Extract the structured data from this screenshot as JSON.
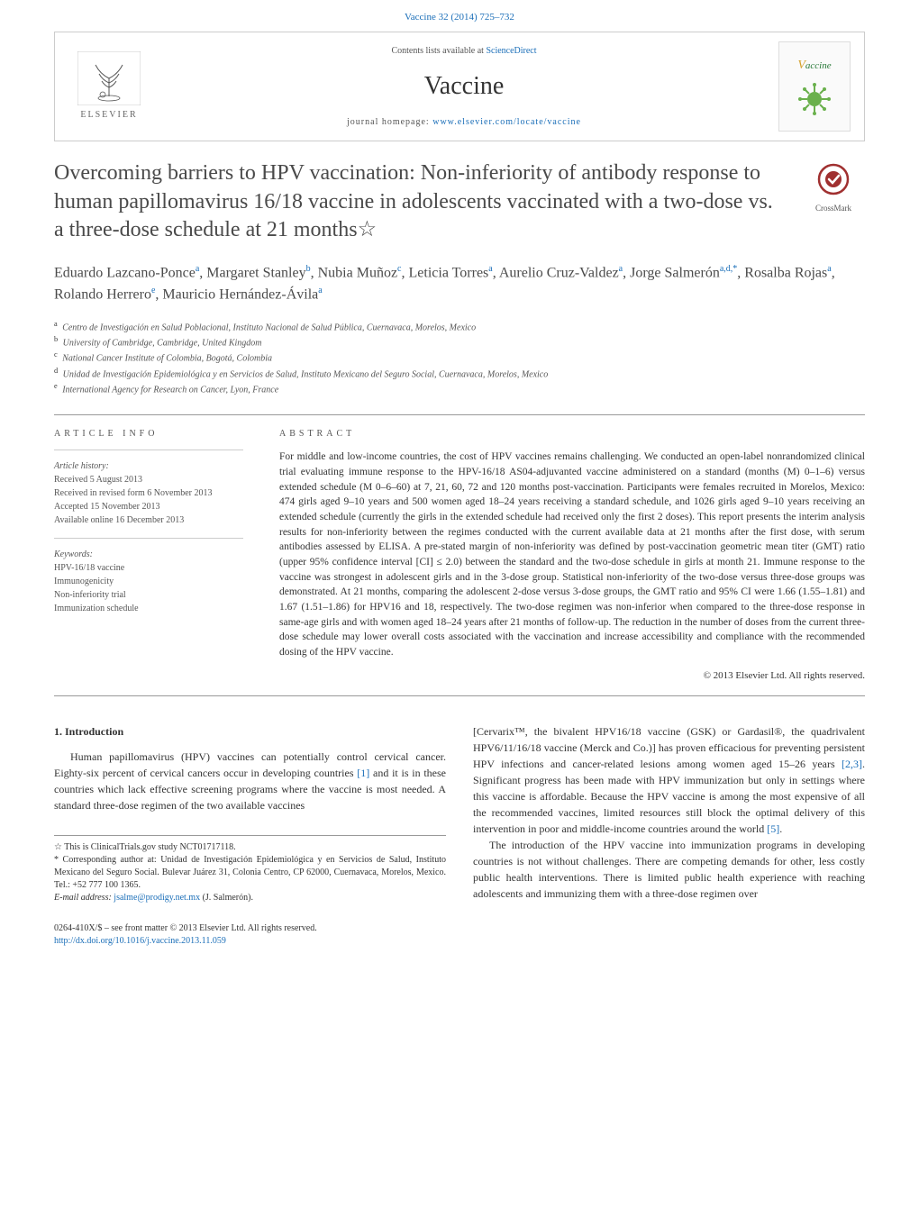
{
  "journal_ref": "Vaccine 32 (2014) 725–732",
  "header": {
    "publisher": "ELSEVIER",
    "contents_prefix": "Contents lists available at ",
    "contents_link": "ScienceDirect",
    "journal_title": "Vaccine",
    "homepage_prefix": "journal homepage: ",
    "homepage_link": "www.elsevier.com/locate/vaccine",
    "cover_title": "Vaccine"
  },
  "crossmark_label": "CrossMark",
  "article": {
    "title": "Overcoming barriers to HPV vaccination: Non-inferiority of antibody response to human papillomavirus 16/18 vaccine in adolescents vaccinated with a two-dose vs. a three-dose schedule at 21 months☆",
    "authors_html": "Eduardo Lazcano-Ponce<sup>a</sup>, Margaret Stanley<sup>b</sup>, Nubia Muñoz<sup>c</sup>, Leticia Torres<sup>a</sup>, Aurelio Cruz-Valdez<sup>a</sup>, Jorge Salmerón<sup>a,d,*</sup>, Rosalba Rojas<sup>a</sup>, Rolando Herrero<sup>e</sup>, Mauricio Hernández-Ávila<sup>a</sup>",
    "affiliations": [
      {
        "sup": "a",
        "text": "Centro de Investigación en Salud Poblacional, Instituto Nacional de Salud Pública, Cuernavaca, Morelos, Mexico"
      },
      {
        "sup": "b",
        "text": "University of Cambridge, Cambridge, United Kingdom"
      },
      {
        "sup": "c",
        "text": "National Cancer Institute of Colombia, Bogotá, Colombia"
      },
      {
        "sup": "d",
        "text": "Unidad de Investigación Epidemiológica y en Servicios de Salud, Instituto Mexicano del Seguro Social, Cuernavaca, Morelos, Mexico"
      },
      {
        "sup": "e",
        "text": "International Agency for Research on Cancer, Lyon, France"
      }
    ]
  },
  "info": {
    "heading": "article info",
    "history_label": "Article history:",
    "history": [
      "Received 5 August 2013",
      "Received in revised form 6 November 2013",
      "Accepted 15 November 2013",
      "Available online 16 December 2013"
    ],
    "keywords_label": "Keywords:",
    "keywords": [
      "HPV-16/18 vaccine",
      "Immunogenicity",
      "Non-inferiority trial",
      "Immunization schedule"
    ]
  },
  "abstract": {
    "heading": "abstract",
    "text": "For middle and low-income countries, the cost of HPV vaccines remains challenging. We conducted an open-label nonrandomized clinical trial evaluating immune response to the HPV-16/18 AS04-adjuvanted vaccine administered on a standard (months (M) 0–1–6) versus extended schedule (M 0–6–60) at 7, 21, 60, 72 and 120 months post-vaccination. Participants were females recruited in Morelos, Mexico: 474 girls aged 9–10 years and 500 women aged 18–24 years receiving a standard schedule, and 1026 girls aged 9–10 years receiving an extended schedule (currently the girls in the extended schedule had received only the first 2 doses). This report presents the interim analysis results for non-inferiority between the regimes conducted with the current available data at 21 months after the first dose, with serum antibodies assessed by ELISA. A pre-stated margin of non-inferiority was defined by post-vaccination geometric mean titer (GMT) ratio (upper 95% confidence interval [CI] ≤ 2.0) between the standard and the two-dose schedule in girls at month 21. Immune response to the vaccine was strongest in adolescent girls and in the 3-dose group. Statistical non-inferiority of the two-dose versus three-dose groups was demonstrated. At 21 months, comparing the adolescent 2-dose versus 3-dose groups, the GMT ratio and 95% CI were 1.66 (1.55–1.81) and 1.67 (1.51–1.86) for HPV16 and 18, respectively. The two-dose regimen was non-inferior when compared to the three-dose response in same-age girls and with women aged 18–24 years after 21 months of follow-up. The reduction in the number of doses from the current three-dose schedule may lower overall costs associated with the vaccination and increase accessibility and compliance with the recommended dosing of the HPV vaccine.",
    "copyright": "© 2013 Elsevier Ltd. All rights reserved."
  },
  "body": {
    "section_number": "1.",
    "section_title": "Introduction",
    "col1_p1_pre": "Human papillomavirus (HPV) vaccines can potentially control cervical cancer. Eighty-six percent of cervical cancers occur in developing countries ",
    "col1_p1_ref1": "[1]",
    "col1_p1_post": " and it is in these countries which lack effective screening programs where the vaccine is most needed. A standard three-dose regimen of the two available vaccines",
    "col2_p1_pre": "[Cervarix™, the bivalent HPV16/18 vaccine (GSK) or Gardasil®, the quadrivalent HPV6/11/16/18 vaccine (Merck and Co.)] has proven efficacious for preventing persistent HPV infections and cancer-related lesions among women aged 15–26 years ",
    "col2_p1_ref1": "[2,3]",
    "col2_p1_mid": ". Significant progress has been made with HPV immunization but only in settings where this vaccine is affordable. Because the HPV vaccine is among the most expensive of all the recommended vaccines, limited resources still block the optimal delivery of this intervention in poor and middle-income countries around the world ",
    "col2_p1_ref2": "[5]",
    "col2_p1_end": ".",
    "col2_p2": "The introduction of the HPV vaccine into immunization programs in developing countries is not without challenges. There are competing demands for other, less costly public health interventions. There is limited public health experience with reaching adolescents and immunizing them with a three-dose regimen over"
  },
  "notes": {
    "star": "☆ This is ClinicalTrials.gov study NCT01717118.",
    "corresponding": "* Corresponding author at: Unidad de Investigación Epidemiológica y en Servicios de Salud, Instituto Mexicano del Seguro Social. Bulevar Juárez 31, Colonia Centro, CP 62000, Cuernavaca, Morelos, Mexico. Tel.: +52 777 100 1365.",
    "email_label": "E-mail address: ",
    "email": "jsalme@prodigy.net.mx",
    "email_suffix": " (J. Salmerón)."
  },
  "footer": {
    "line1": "0264-410X/$ – see front matter © 2013 Elsevier Ltd. All rights reserved.",
    "doi": "http://dx.doi.org/10.1016/j.vaccine.2013.11.059"
  },
  "colors": {
    "link": "#1a6eb8",
    "text": "#333333",
    "muted": "#555555",
    "border": "#cccccc",
    "green": "#2a7a3a"
  }
}
